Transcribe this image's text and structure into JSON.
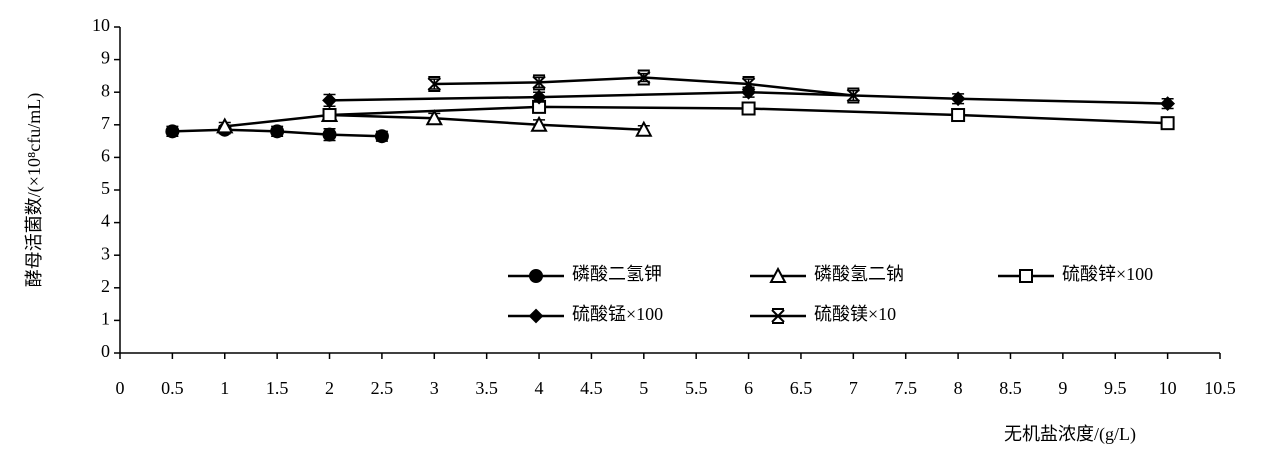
{
  "chart_data": {
    "type": "line",
    "x_label": "无机盐浓度/(g/L)",
    "y_label": "酵母活菌数/(×10⁸cfu/mL)",
    "xlim": [
      0,
      10.5
    ],
    "xticks": [
      0,
      0.5,
      1,
      1.5,
      2,
      2.5,
      3,
      3.5,
      4,
      4.5,
      5,
      5.5,
      6,
      6.5,
      7,
      7.5,
      8,
      8.5,
      9,
      9.5,
      10,
      10.5
    ],
    "ylim": [
      0,
      10
    ],
    "yticks": [
      0,
      1,
      2,
      3,
      4,
      5,
      6,
      7,
      8,
      9,
      10
    ],
    "grid": false,
    "series": [
      {
        "name": "磷酸二氢钾",
        "color": "#000000",
        "marker": "circle",
        "x": [
          0.5,
          1,
          1.5,
          2,
          2.5
        ],
        "values": [
          6.8,
          6.85,
          6.8,
          6.7,
          6.65
        ],
        "errors": [
          0.15,
          0.12,
          0.15,
          0.18,
          0.15
        ]
      },
      {
        "name": "磷酸氢二钠",
        "color": "#000000",
        "marker": "triangle",
        "x": [
          1,
          2,
          3,
          4,
          5
        ],
        "values": [
          6.95,
          7.3,
          7.2,
          7.0,
          6.85
        ],
        "errors": [
          0.12,
          0.15,
          0.15,
          0.15,
          0.12
        ]
      },
      {
        "name": "硫酸锌×100",
        "color": "#000000",
        "marker": "square",
        "x": [
          2,
          4,
          6,
          8,
          10
        ],
        "values": [
          7.3,
          7.55,
          7.5,
          7.3,
          7.05
        ],
        "errors": [
          0.15,
          0.15,
          0.15,
          0.12,
          0.15
        ]
      },
      {
        "name": "硫酸锰×100",
        "color": "#000000",
        "marker": "diamond",
        "x": [
          2,
          4,
          6,
          8,
          10
        ],
        "values": [
          7.75,
          7.85,
          8.0,
          7.8,
          7.65
        ],
        "errors": [
          0.18,
          0.15,
          0.15,
          0.15,
          0.15
        ]
      },
      {
        "name": "硫酸镁×10",
        "color": "#000000",
        "marker": "star",
        "x": [
          3,
          4,
          5,
          6,
          7
        ],
        "values": [
          8.25,
          8.3,
          8.45,
          8.25,
          7.9
        ],
        "errors": [
          0.15,
          0.15,
          0.12,
          0.15,
          0.15
        ]
      }
    ]
  }
}
